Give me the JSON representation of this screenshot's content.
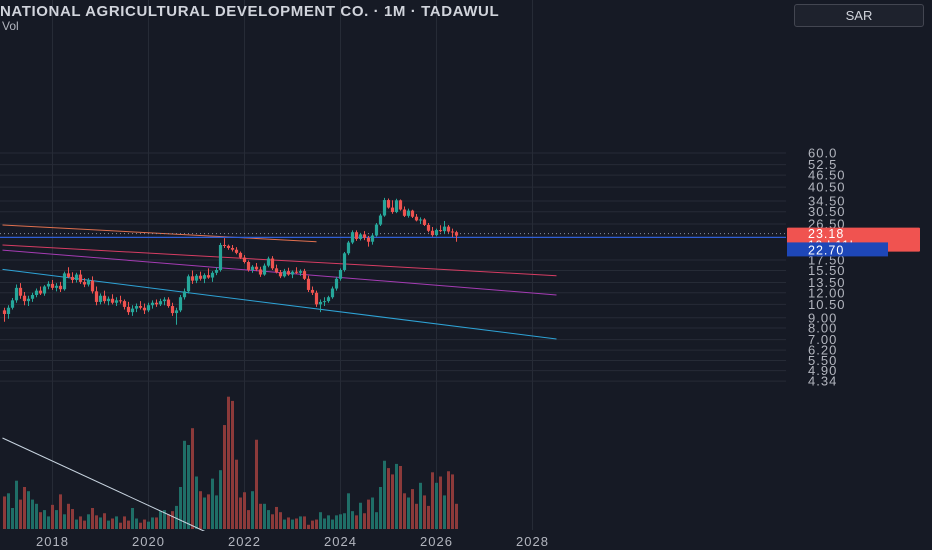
{
  "header": {
    "title": "NATIONAL AGRICULTURAL DEVELOPMENT CO. · 1M · TADAWUL",
    "volume_label": "Vol",
    "currency": "SAR"
  },
  "colors": {
    "background": "#161a25",
    "grid": "#262b36",
    "up": "#26a69a",
    "down": "#ef5350",
    "up_volume": "#1f6e67",
    "down_volume": "#8c3a3a",
    "text": "#b2b5be",
    "trend_orange": "#e0704f",
    "trend_red": "#d63d63",
    "trend_purple": "#a53cb4",
    "trend_blue": "#2ea3d6",
    "trend_white": "#c8d4e0",
    "hline": "#2f5fd6"
  },
  "chart_data": {
    "type": "candlestick",
    "title": "NATIONAL AGRICULTURAL DEVELOPMENT CO. · 1M · TADAWUL",
    "y_scale": "log",
    "y_ticks": [
      60.0,
      52.5,
      46.5,
      40.5,
      34.5,
      30.5,
      26.5,
      17.5,
      15.5,
      13.5,
      12.0,
      10.5,
      9.0,
      8.0,
      7.0,
      6.2,
      5.5,
      4.9,
      4.34
    ],
    "y_tick_labels": [
      "60.0",
      "52.5",
      "46.50",
      "40.50",
      "34.50",
      "30.50",
      "26.50",
      "17.50",
      "15.50",
      "13.50",
      "12.00",
      "10.50",
      "9.00",
      "8.00",
      "7.00",
      "6.20",
      "5.50",
      "4.90",
      "4.34"
    ],
    "x_ticks": [
      2018,
      2020,
      2022,
      2024,
      2026,
      2028
    ],
    "x_tick_labels": [
      "2018",
      "2020",
      "2022",
      "2024",
      "2026",
      "2028"
    ],
    "last_price": {
      "value": 23.18,
      "label": "23.18",
      "countdown": "19d 11h"
    },
    "level_line": {
      "value": 22.7,
      "label": "22.70"
    },
    "grid": true,
    "ohlc": [
      [
        9.8,
        10.1,
        8.6,
        9.4
      ],
      [
        9.4,
        10.4,
        8.9,
        10.1
      ],
      [
        10.1,
        11.3,
        9.9,
        11
      ],
      [
        11,
        13.2,
        10.7,
        12.7
      ],
      [
        12.7,
        13.4,
        11.2,
        11.6
      ],
      [
        11.6,
        12.1,
        10.4,
        10.9
      ],
      [
        10.9,
        11.6,
        10.3,
        11.2
      ],
      [
        11.2,
        12,
        10.8,
        11.7
      ],
      [
        11.7,
        12.6,
        11.4,
        12.3
      ],
      [
        12.3,
        12.9,
        11.7,
        11.9
      ],
      [
        11.9,
        13.1,
        11.6,
        12.9
      ],
      [
        12.9,
        13.7,
        12.5,
        13.3
      ],
      [
        13.3,
        13.9,
        12.4,
        12.7
      ],
      [
        12.7,
        13.4,
        12.2,
        13
      ],
      [
        13,
        13.6,
        12.1,
        12.5
      ],
      [
        12.5,
        15.3,
        12.3,
        15
      ],
      [
        15,
        16.1,
        14.2,
        14.4
      ],
      [
        14.4,
        15.2,
        13.4,
        13.9
      ],
      [
        13.9,
        15.1,
        13.5,
        14.8
      ],
      [
        14.8,
        15.6,
        13.3,
        13.6
      ],
      [
        13.6,
        14.2,
        12.8,
        13.2
      ],
      [
        13.2,
        14.2,
        12.9,
        13.8
      ],
      [
        13.8,
        14.5,
        11.9,
        12.2
      ],
      [
        12.2,
        12.9,
        10.4,
        10.8
      ],
      [
        10.8,
        11.9,
        10.5,
        11.6
      ],
      [
        11.6,
        12.3,
        10.6,
        10.9
      ],
      [
        10.9,
        11.5,
        10.4,
        11.2
      ],
      [
        11.2,
        11.8,
        10.5,
        10.7
      ],
      [
        10.7,
        11.4,
        10.3,
        11
      ],
      [
        11,
        11.6,
        10.6,
        10.9
      ],
      [
        10.9,
        11.1,
        9.9,
        10.2
      ],
      [
        10.2,
        10.8,
        9.3,
        9.6
      ],
      [
        9.6,
        10.4,
        9.2,
        10
      ],
      [
        10,
        10.6,
        9.6,
        10.3
      ],
      [
        10.3,
        10.9,
        9.9,
        10.1
      ],
      [
        10.1,
        10.6,
        9.4,
        9.8
      ],
      [
        9.8,
        10.7,
        9.6,
        10.4
      ],
      [
        10.4,
        11,
        10,
        10.7
      ],
      [
        10.7,
        11.1,
        10.2,
        10.5
      ],
      [
        10.5,
        11.2,
        10.3,
        10.9
      ],
      [
        10.9,
        11.4,
        10.4,
        11.1
      ],
      [
        11.1,
        11.4,
        10.1,
        10.3
      ],
      [
        10.3,
        10.7,
        9.2,
        9.5
      ],
      [
        9.5,
        10.1,
        8.3,
        9.8
      ],
      [
        9.8,
        11.7,
        9.6,
        11.4
      ],
      [
        11.4,
        12.6,
        11.1,
        12.2
      ],
      [
        12.2,
        14.8,
        11.9,
        14.5
      ],
      [
        14.5,
        15.5,
        13.3,
        13.8
      ],
      [
        13.8,
        14.9,
        13.4,
        14.6
      ],
      [
        14.6,
        15.3,
        13.8,
        14.1
      ],
      [
        14.1,
        15,
        13.4,
        14.7
      ],
      [
        14.7,
        15.9,
        14.1,
        14.3
      ],
      [
        14.3,
        15.4,
        13.6,
        15.1
      ],
      [
        15.1,
        16.1,
        14.7,
        15.6
      ],
      [
        15.6,
        21.3,
        15.3,
        20.8
      ],
      [
        20.8,
        22.5,
        20.1,
        20.6
      ],
      [
        20.6,
        20.9,
        19.7,
        20.1
      ],
      [
        20.1,
        20.8,
        19.3,
        19.7
      ],
      [
        19.7,
        20.3,
        18.7,
        19
      ],
      [
        19,
        19.3,
        17.7,
        18
      ],
      [
        18,
        18.5,
        16.8,
        17.1
      ],
      [
        17.1,
        17.4,
        15.3,
        15.6
      ],
      [
        15.6,
        16.5,
        15.1,
        16.2
      ],
      [
        16.2,
        16.9,
        15.4,
        15.7
      ],
      [
        15.7,
        16.2,
        14.4,
        14.8
      ],
      [
        14.8,
        16.8,
        14.6,
        16.4
      ],
      [
        16.4,
        18.2,
        16.1,
        17.8
      ],
      [
        17.8,
        18.3,
        15.6,
        15.9
      ],
      [
        15.9,
        16.6,
        15,
        15.2
      ],
      [
        15.2,
        15.6,
        14.2,
        14.5
      ],
      [
        14.5,
        15.8,
        14.3,
        15.4
      ],
      [
        15.4,
        16,
        14.6,
        14.8
      ],
      [
        14.8,
        15.5,
        14.2,
        15.3
      ],
      [
        15.3,
        16.1,
        14.9,
        15.1
      ],
      [
        15.1,
        15.7,
        14.6,
        15.4
      ],
      [
        15.4,
        15.8,
        13.9,
        14.1
      ],
      [
        14.1,
        14.6,
        12.1,
        12.4
      ],
      [
        12.4,
        12.9,
        11.7,
        12
      ],
      [
        12,
        12.3,
        10.2,
        10.5
      ],
      [
        10.5,
        11.1,
        9.6,
        10.8
      ],
      [
        10.8,
        11.4,
        10.3,
        10.9
      ],
      [
        10.9,
        11.6,
        10.7,
        11.4
      ],
      [
        11.4,
        12.9,
        11.2,
        12.6
      ],
      [
        12.6,
        14.4,
        12.3,
        14.1
      ],
      [
        14.1,
        15.9,
        13.8,
        15.6
      ],
      [
        15.6,
        19.2,
        15.3,
        18.9
      ],
      [
        18.9,
        21.8,
        18.5,
        21.4
      ],
      [
        21.4,
        24.6,
        21,
        24.1
      ],
      [
        24.1,
        24.6,
        21.8,
        22.3
      ],
      [
        22.3,
        23.9,
        21.9,
        23.5
      ],
      [
        23.5,
        24.4,
        22,
        22.6
      ],
      [
        22.6,
        23.1,
        20.4,
        21.6
      ],
      [
        21.6,
        23.7,
        20.9,
        23.2
      ],
      [
        23.2,
        26.8,
        22.9,
        26.3
      ],
      [
        26.3,
        29.8,
        25.9,
        29.2
      ],
      [
        29.2,
        35.8,
        28.8,
        34.9
      ],
      [
        34.9,
        35.5,
        31.6,
        32
      ],
      [
        32,
        34.8,
        29.8,
        30.4
      ],
      [
        30.4,
        35.4,
        30,
        34.8
      ],
      [
        34.8,
        35.1,
        30.9,
        31.3
      ],
      [
        31.3,
        32.4,
        28.7,
        29.1
      ],
      [
        29.1,
        31.6,
        28.5,
        30.9
      ],
      [
        30.9,
        31.2,
        28.4,
        28.8
      ],
      [
        28.8,
        29.7,
        27.3,
        27.6
      ],
      [
        27.6,
        28.6,
        26.5,
        27.9
      ],
      [
        27.9,
        28.3,
        25.9,
        26.2
      ],
      [
        26.2,
        26.8,
        24.1,
        24.5
      ],
      [
        24.5,
        25.6,
        22.9,
        23.3
      ],
      [
        23.3,
        25.1,
        23,
        24.7
      ],
      [
        24.7,
        26.1,
        24.1,
        24.4
      ],
      [
        24.4,
        27.4,
        23.6,
        25.7
      ],
      [
        25.7,
        26.2,
        23.9,
        24.3
      ],
      [
        24.3,
        25.1,
        22.8,
        24.1
      ],
      [
        24.1,
        24.5,
        21.6,
        23.18
      ]
    ],
    "volume": [
      31,
      34,
      20,
      46,
      28,
      40,
      36,
      28,
      24,
      16,
      18,
      12,
      23,
      18,
      33,
      14,
      24,
      19,
      9,
      12,
      8,
      14,
      20,
      13,
      11,
      15,
      8,
      10,
      12,
      6,
      12,
      8,
      20,
      10,
      6,
      9,
      7,
      11,
      11,
      17,
      18,
      14,
      17,
      22,
      40,
      84,
      80,
      96,
      50,
      36,
      30,
      33,
      48,
      32,
      56,
      99,
      126,
      122,
      66,
      30,
      35,
      18,
      36,
      85,
      24,
      24,
      18,
      14,
      21,
      16,
      9,
      11,
      9,
      10,
      12,
      12,
      4,
      8,
      9,
      16,
      10,
      13,
      9,
      13,
      14,
      15,
      34,
      17,
      13,
      25,
      15,
      28,
      30,
      16,
      40,
      65,
      58,
      52,
      62,
      60,
      34,
      30,
      38,
      24,
      44,
      32,
      22,
      54,
      44,
      50,
      32,
      55,
      52,
      24
    ],
    "trendlines": [
      {
        "color_key": "trend_orange",
        "p1": [
          -0.5,
          26.2
        ],
        "p2": [
          78,
          21.6
        ]
      },
      {
        "color_key": "trend_red",
        "p1": [
          -0.5,
          20.8
        ],
        "p2": [
          138,
          14.6
        ]
      },
      {
        "color_key": "trend_purple",
        "p1": [
          -0.5,
          19.6
        ],
        "p2": [
          138,
          11.7
        ]
      },
      {
        "color_key": "trend_blue",
        "p1": [
          -0.5,
          15.7
        ],
        "p2": [
          138,
          7.05
        ]
      }
    ],
    "white_line": {
      "color_key": "trend_white",
      "p1": [
        -0.5,
        520
      ],
      "p2": [
        52,
        10
      ]
    }
  }
}
